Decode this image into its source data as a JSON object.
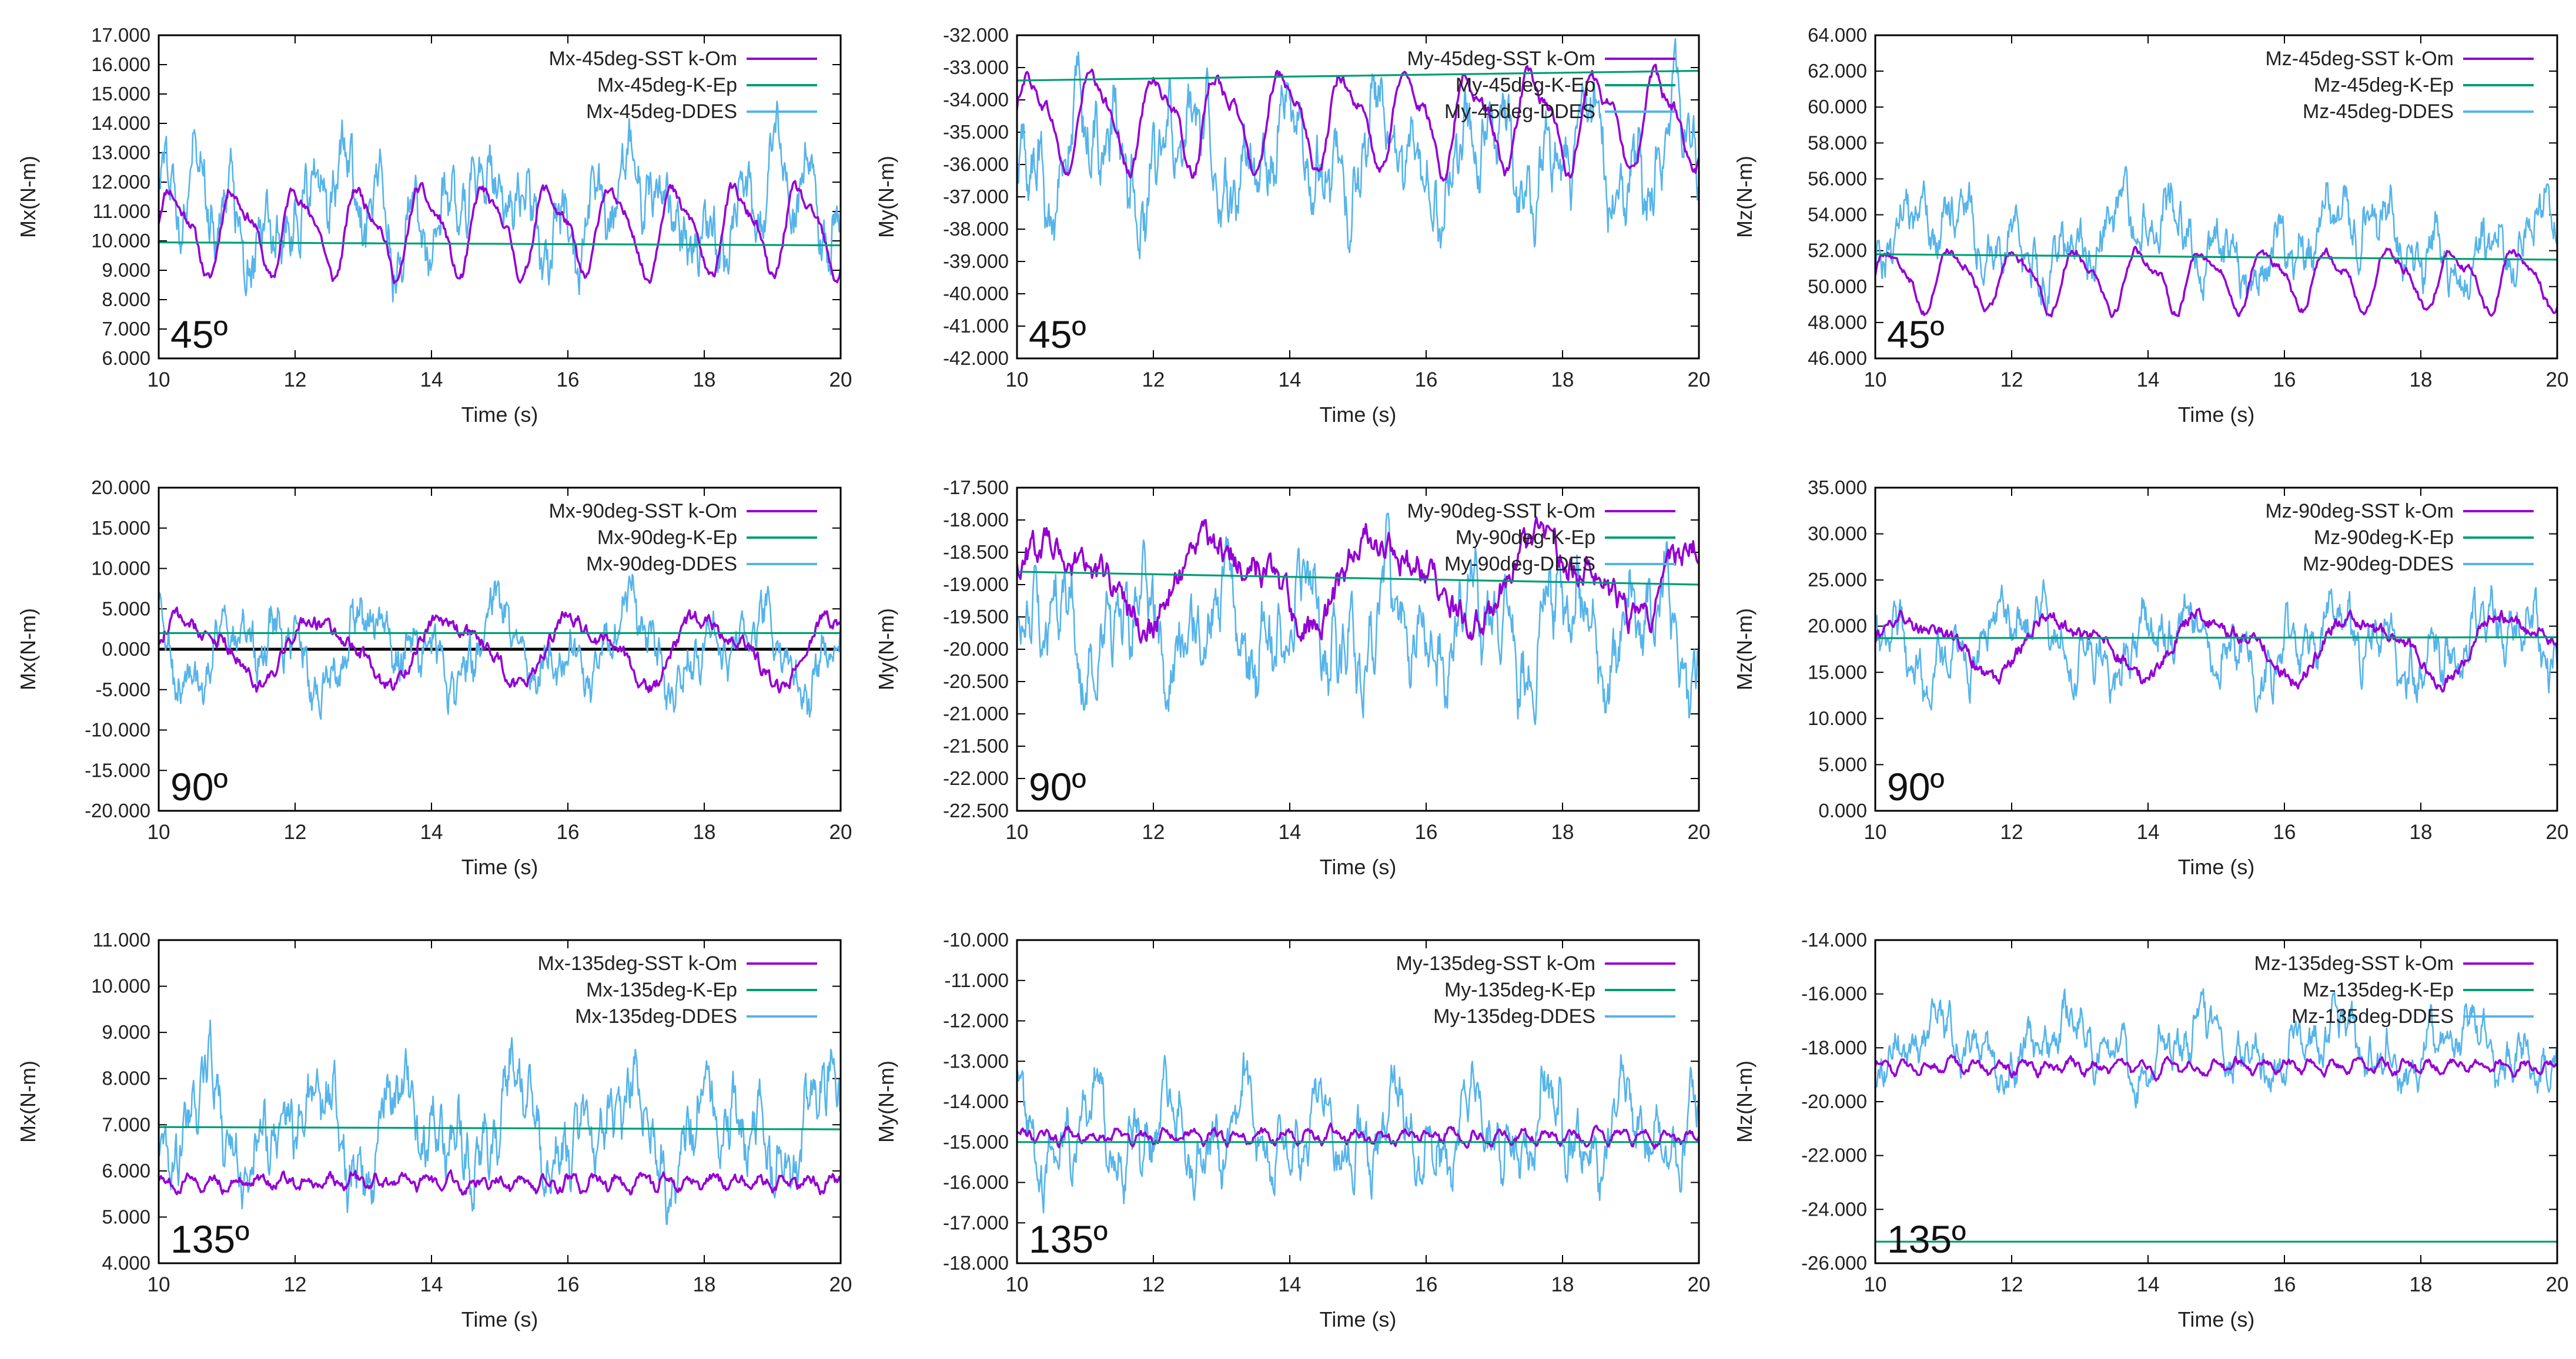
{
  "colors": {
    "sst": "#9400D3",
    "kep": "#009E73",
    "ddes": "#56B4E9",
    "zero": "#000000",
    "frame": "#000000",
    "grid": "#c8c8c8"
  },
  "chart_data": [
    {
      "type": "line",
      "xlabel": "Time (s)",
      "ylabel": "Mx(N-m)",
      "angle": "45º",
      "xlim": [
        10,
        20
      ],
      "xticks": [
        "10",
        "12",
        "14",
        "16",
        "18",
        "20"
      ],
      "ylim": [
        6,
        17
      ],
      "yticks": [
        "6.000",
        "7.000",
        "8.000",
        "9.000",
        "10.000",
        "11.000",
        "12.000",
        "13.000",
        "14.000",
        "15.000",
        "16.000",
        "17.000"
      ],
      "series": [
        {
          "name": "Mx-45deg-SST k-Om",
          "kind": "sst",
          "mean": 10.4,
          "amp": 1.6,
          "period": 0.92,
          "noise": 0.25
        },
        {
          "name": "Mx-45deg-K-Ep",
          "kind": "kep",
          "start": 9.95,
          "end": 9.85
        },
        {
          "name": "Mx-45deg-DDES",
          "kind": "ddes",
          "mean": 11.0,
          "amp": 2.6
        }
      ]
    },
    {
      "type": "line",
      "xlabel": "Time (s)",
      "ylabel": "My(N-m)",
      "angle": "45º",
      "xlim": [
        10,
        20
      ],
      "xticks": [
        "10",
        "12",
        "14",
        "16",
        "18",
        "20"
      ],
      "ylim": [
        -42,
        -32
      ],
      "yticks": [
        "-42.000",
        "-41.000",
        "-40.000",
        "-39.000",
        "-38.000",
        "-37.000",
        "-36.000",
        "-35.000",
        "-34.000",
        "-33.000",
        "-32.000"
      ],
      "series": [
        {
          "name": "My-45deg-SST k-Om",
          "kind": "sst",
          "mean": -34.6,
          "amp": 1.6,
          "period": 0.92,
          "noise": 0.25
        },
        {
          "name": "My-45deg-K-Ep",
          "kind": "kep",
          "start": -33.4,
          "end": -33.1
        },
        {
          "name": "My-45deg-DDES",
          "kind": "ddes",
          "mean": -35.8,
          "amp": 2.6
        }
      ]
    },
    {
      "type": "line",
      "xlabel": "Time (s)",
      "ylabel": "Mz(N-m)",
      "angle": "45º",
      "xlim": [
        10,
        20
      ],
      "xticks": [
        "10",
        "12",
        "14",
        "16",
        "18",
        "20"
      ],
      "ylim": [
        46,
        64
      ],
      "yticks": [
        "46.000",
        "48.000",
        "50.000",
        "52.000",
        "54.000",
        "56.000",
        "58.000",
        "60.000",
        "62.000",
        "64.000"
      ],
      "series": [
        {
          "name": "Mz-45deg-SST k-Om",
          "kind": "sst",
          "mean": 50.5,
          "amp": 1.8,
          "period": 0.92,
          "noise": 0.3
        },
        {
          "name": "Mz-45deg-K-Ep",
          "kind": "kep",
          "start": 51.8,
          "end": 51.5
        },
        {
          "name": "Mz-45deg-DDES",
          "kind": "ddes",
          "mean": 52.5,
          "amp": 3.2
        }
      ]
    },
    {
      "type": "line",
      "xlabel": "Time (s)",
      "ylabel": "Mx(N-m)",
      "angle": "90º",
      "xlim": [
        10,
        20
      ],
      "xticks": [
        "10",
        "12",
        "14",
        "16",
        "18",
        "20"
      ],
      "ylim": [
        -20,
        20
      ],
      "yticks": [
        "-20.000",
        "-15.000",
        "-10.000",
        "-5.000",
        "0.000",
        "5.000",
        "10.000",
        "15.000",
        "20.000"
      ],
      "zero_line": true,
      "series": [
        {
          "name": "Mx-90deg-SST k-Om",
          "kind": "sst",
          "mean": 0.0,
          "amp": 4.5,
          "period": 1.9,
          "noise": 1.2
        },
        {
          "name": "Mx-90deg-K-Ep",
          "kind": "kep",
          "start": 2.0,
          "end": 2.0
        },
        {
          "name": "Mx-90deg-DDES",
          "kind": "ddes",
          "mean": 0.0,
          "amp": 7.5
        }
      ]
    },
    {
      "type": "line",
      "xlabel": "Time (s)",
      "ylabel": "My(N-m)",
      "angle": "90º",
      "xlim": [
        10,
        20
      ],
      "xticks": [
        "10",
        "12",
        "14",
        "16",
        "18",
        "20"
      ],
      "ylim": [
        -22.5,
        -17.5
      ],
      "yticks": [
        "-22.500",
        "-22.000",
        "-21.500",
        "-21.000",
        "-20.500",
        "-20.000",
        "-19.500",
        "-19.000",
        "-18.500",
        "-18.000",
        "-17.500"
      ],
      "series": [
        {
          "name": "My-90deg-SST k-Om",
          "kind": "sst",
          "mean": -18.9,
          "amp": 0.7,
          "period": 2.4,
          "noise": 0.3
        },
        {
          "name": "My-90deg-K-Ep",
          "kind": "kep",
          "start": -18.8,
          "end": -19.0
        },
        {
          "name": "My-90deg-DDES",
          "kind": "ddes",
          "mean": -19.7,
          "amp": 1.3
        }
      ]
    },
    {
      "type": "line",
      "xlabel": "Time (s)",
      "ylabel": "Mz(N-m)",
      "angle": "90º",
      "xlim": [
        10,
        20
      ],
      "xticks": [
        "10",
        "12",
        "14",
        "16",
        "18",
        "20"
      ],
      "ylim": [
        0,
        35
      ],
      "yticks": [
        "0.000",
        "5.000",
        "10.000",
        "15.000",
        "20.000",
        "25.000",
        "30.000",
        "35.000"
      ],
      "series": [
        {
          "name": "Mz-90deg-SST k-Om",
          "kind": "sst",
          "mean": 18.0,
          "amp": 3.5,
          "period": 2.2,
          "noise": 1.0
        },
        {
          "name": "Mz-90deg-K-Ep",
          "kind": "kep",
          "start": 18.7,
          "end": 18.8
        },
        {
          "name": "Mz-90deg-DDES",
          "kind": "ddes",
          "mean": 18.0,
          "amp": 6.0
        }
      ]
    },
    {
      "type": "line",
      "xlabel": "Time (s)",
      "ylabel": "Mx(N-m)",
      "angle": "135º",
      "xlim": [
        10,
        20
      ],
      "xticks": [
        "10",
        "12",
        "14",
        "16",
        "18",
        "20"
      ],
      "ylim": [
        4,
        11
      ],
      "yticks": [
        "4.000",
        "5.000",
        "6.000",
        "7.000",
        "8.000",
        "9.000",
        "10.000",
        "11.000"
      ],
      "series": [
        {
          "name": "Mx-135deg-SST k-Om",
          "kind": "sst",
          "mean": 5.75,
          "amp": 0.15,
          "period": 0.35,
          "noise": 0.15
        },
        {
          "name": "Mx-135deg-K-Ep",
          "kind": "kep",
          "start": 6.95,
          "end": 6.9
        },
        {
          "name": "Mx-135deg-DDES",
          "kind": "ddes",
          "mean": 6.9,
          "amp": 1.7
        }
      ]
    },
    {
      "type": "line",
      "xlabel": "Time (s)",
      "ylabel": "My(N-m)",
      "angle": "135º",
      "xlim": [
        10,
        20
      ],
      "xticks": [
        "10",
        "12",
        "14",
        "16",
        "18",
        "20"
      ],
      "ylim": [
        -18,
        -10
      ],
      "yticks": [
        "-18.000",
        "-17.000",
        "-16.000",
        "-15.000",
        "-14.000",
        "-13.000",
        "-12.000",
        "-11.000",
        "-10.000"
      ],
      "series": [
        {
          "name": "My-135deg-SST k-Om",
          "kind": "sst",
          "mean": -14.85,
          "amp": 0.15,
          "period": 0.35,
          "noise": 0.15
        },
        {
          "name": "My-135deg-K-Ep",
          "kind": "kep",
          "start": -15.0,
          "end": -15.0
        },
        {
          "name": "My-135deg-DDES",
          "kind": "ddes",
          "mean": -14.8,
          "amp": 1.7
        }
      ]
    },
    {
      "type": "line",
      "xlabel": "Time (s)",
      "ylabel": "Mz(N-m)",
      "angle": "135º",
      "xlim": [
        10,
        20
      ],
      "xticks": [
        "10",
        "12",
        "14",
        "16",
        "18",
        "20"
      ],
      "ylim": [
        -26,
        -14
      ],
      "yticks": [
        "-26.000",
        "-24.000",
        "-22.000",
        "-20.000",
        "-18.000",
        "-16.000",
        "-14.000"
      ],
      "series": [
        {
          "name": "Mz-135deg-SST k-Om",
          "kind": "sst",
          "mean": -18.7,
          "amp": 0.25,
          "period": 0.35,
          "noise": 0.2
        },
        {
          "name": "Mz-135deg-K-Ep",
          "kind": "kep",
          "start": -25.2,
          "end": -25.2
        },
        {
          "name": "Mz-135deg-DDES",
          "kind": "ddes",
          "mean": -18.0,
          "amp": 1.8
        }
      ]
    }
  ]
}
